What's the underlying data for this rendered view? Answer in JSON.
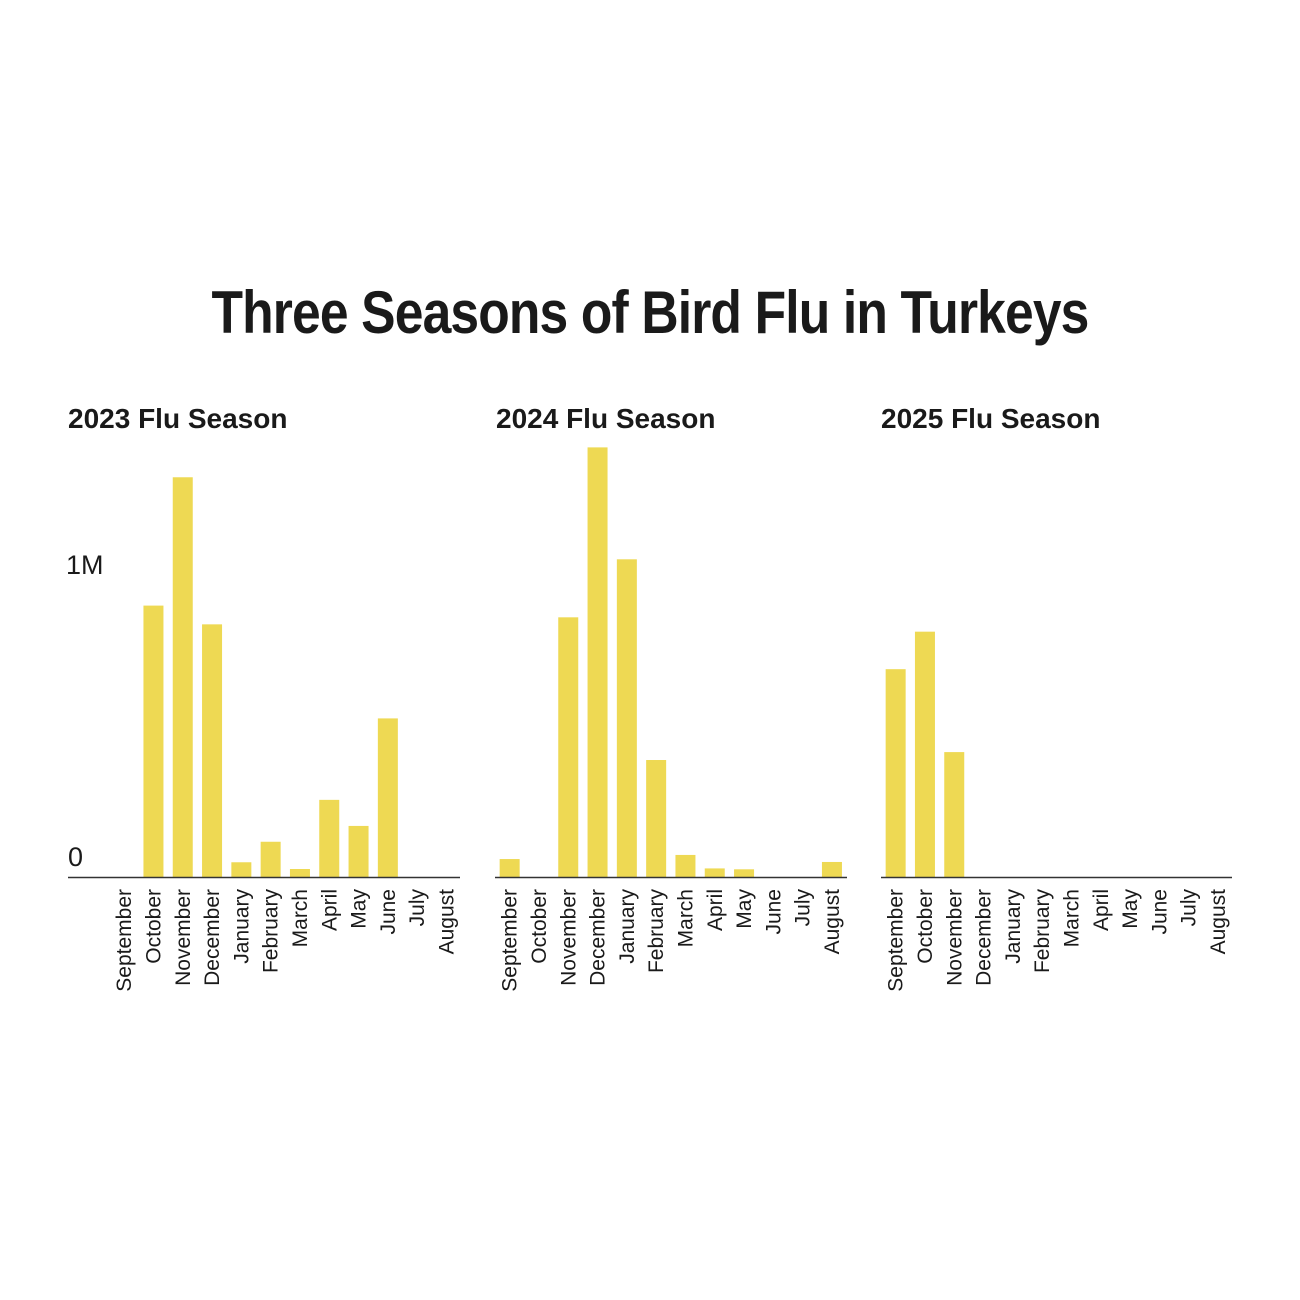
{
  "title": "Three Seasons of Bird Flu in Turkeys",
  "colors": {
    "bar": "#EED953",
    "axis": "#333333"
  },
  "chart_data": [
    {
      "type": "bar",
      "title": "2023 Flu Season",
      "categories": [
        "September",
        "October",
        "November",
        "December",
        "January",
        "February",
        "March",
        "April",
        "May",
        "June",
        "July",
        "August"
      ],
      "values": [
        0,
        928000,
        1366000,
        864000,
        52000,
        122000,
        29000,
        265000,
        176000,
        543000,
        0,
        0
      ],
      "yticks": [
        "0",
        "1M"
      ],
      "ylim": [
        0,
        1500000
      ],
      "grid": false
    },
    {
      "type": "bar",
      "title": "2024 Flu Season",
      "categories": [
        "September",
        "October",
        "November",
        "December",
        "January",
        "February",
        "March",
        "April",
        "May",
        "June",
        "July",
        "August"
      ],
      "values": [
        63000,
        0,
        888000,
        1468000,
        1086000,
        401000,
        77000,
        31000,
        28000,
        0,
        0,
        53000
      ],
      "ylim": [
        0,
        1500000
      ],
      "grid": false
    },
    {
      "type": "bar",
      "title": "2025 Flu Season",
      "categories": [
        "September",
        "October",
        "November",
        "December",
        "January",
        "February",
        "March",
        "April",
        "May",
        "June",
        "July",
        "August"
      ],
      "values": [
        711000,
        839000,
        428000,
        0,
        0,
        0,
        0,
        0,
        0,
        0,
        0,
        0
      ],
      "ylim": [
        0,
        1500000
      ],
      "grid": false
    }
  ]
}
